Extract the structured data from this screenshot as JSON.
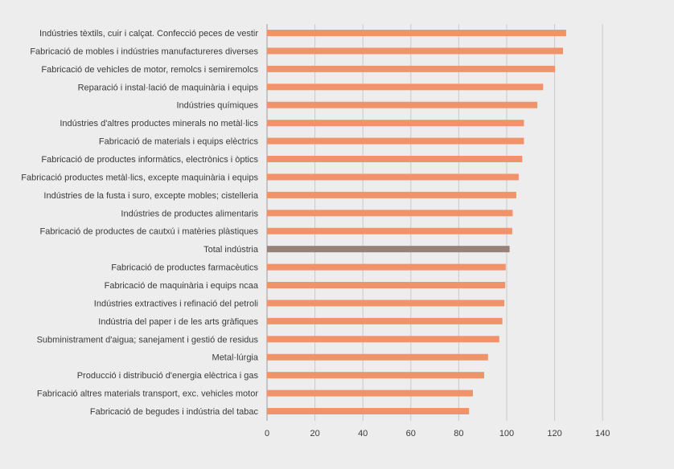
{
  "chart_data": {
    "type": "bar",
    "orientation": "horizontal",
    "title": "",
    "xlabel": "",
    "ylabel": "",
    "xlim": [
      0,
      140
    ],
    "x_ticks": [
      0,
      20,
      40,
      60,
      80,
      100,
      120,
      140
    ],
    "grid": true,
    "legend": "none",
    "colors": {
      "bar": "#f0936a",
      "highlight": "#978279",
      "grid": "#c9c9c9",
      "background": "#ededee"
    },
    "highlight_category": "Total indústria",
    "categories": [
      "Indústries tèxtils, cuir i calçat. Confecció peces de vestir",
      "Fabricació de mobles i indústries manufactureres diverses",
      "Fabricació de vehicles de motor, remolcs i semiremolcs",
      "Reparació i instal·lació de maquinària i equips",
      "Indústries químiques",
      "Indústries d'altres productes minerals no metàl·lics",
      "Fabricació de materials i equips elèctrics",
      "Fabricació de productes informàtics, electrònics i òptics",
      "Fabricació productes metàl·lics, excepte maquinària i equips",
      "Indústries de la fusta i suro, excepte mobles; cistelleria",
      "Indústries de productes alimentaris",
      "Fabricació de productes de cautxú i matèries plàstiques",
      "Total indústria",
      "Fabricació de productes farmacèutics",
      "Fabricació de maquinària i equips ncaa",
      "Indústries extractives i refinació del petroli",
      "Indústria del paper i de les arts gràfiques",
      "Subministrament d'aigua; sanejament i gestió de residus",
      "Metal·lúrgia",
      "Producció i distribució d'energia elèctrica i gas",
      "Fabricació altres materials transport, exc. vehicles motor",
      "Fabricació de begudes i indústria del tabac"
    ],
    "values": [
      124.8,
      123.5,
      120.2,
      115.2,
      112.8,
      107.2,
      107.2,
      106.5,
      105.0,
      104.0,
      102.5,
      102.3,
      101.2,
      99.6,
      99.4,
      99.0,
      98.2,
      96.9,
      92.2,
      90.6,
      85.9,
      84.3
    ]
  }
}
